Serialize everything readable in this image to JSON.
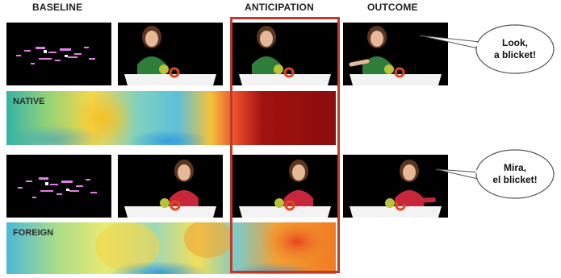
{
  "headers": {
    "baseline": "BASELINE",
    "anticipation": "ANTICIPATION",
    "outcome": "OUTCOME"
  },
  "rows": {
    "native": {
      "label": "NATIVE",
      "speech": "Look, a blicket!"
    },
    "foreign": {
      "label": "FOREIGN",
      "speech": "Mira, el blicket!"
    }
  },
  "colors": {
    "anticipation_window": "#c0392b",
    "shirt_native": "#2e7d3a",
    "shirt_foreign": "#c8273b",
    "heat_low": "#2fa7e0",
    "heat_high": "#8b0d0d"
  }
}
